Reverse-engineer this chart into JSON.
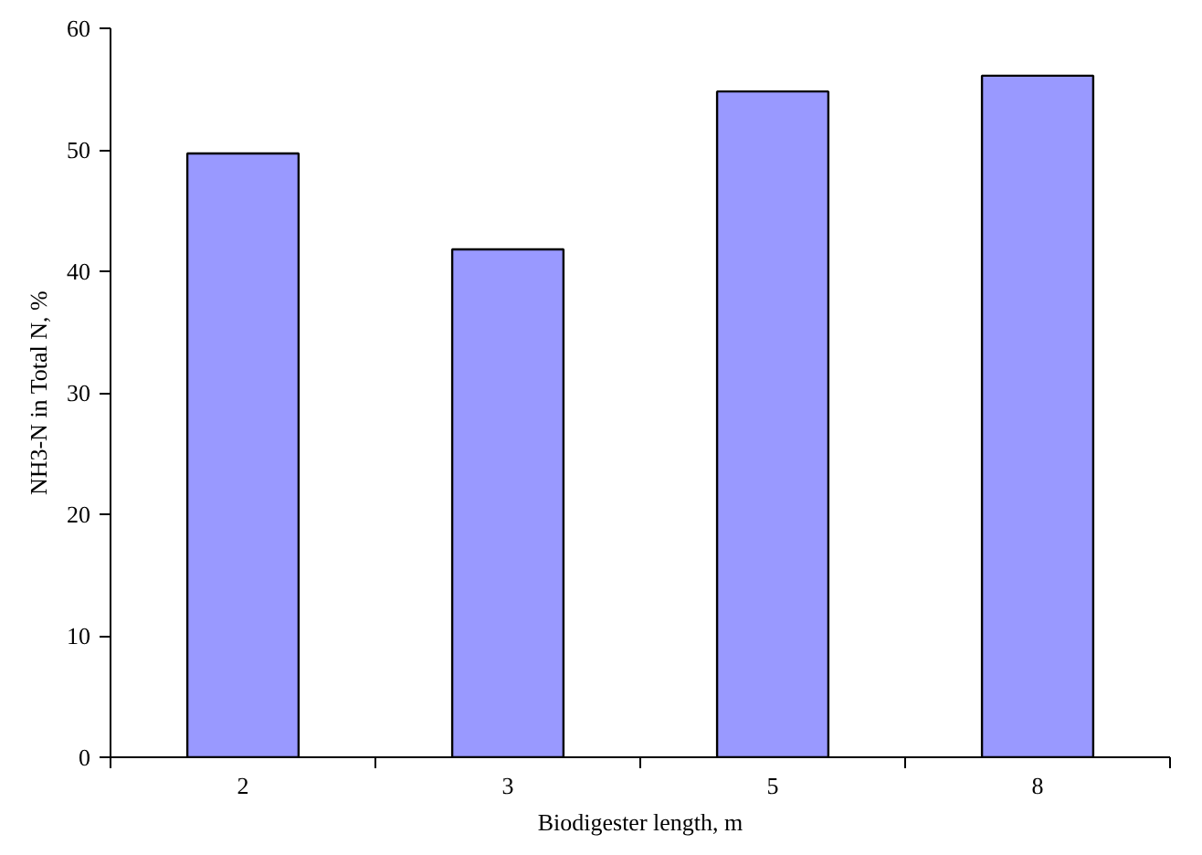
{
  "chart_data": {
    "type": "bar",
    "xlabel": "Biodigester length, m",
    "ylabel": "NH3-N in Total N, %",
    "categories": [
      "2",
      "3",
      "5",
      "8"
    ],
    "values": [
      49.7,
      41.8,
      54.8,
      56.1
    ],
    "color": "#9999ff",
    "ylim": [
      0,
      60
    ],
    "yticks": [
      0,
      10,
      20,
      30,
      40,
      50,
      60
    ],
    "grid": false
  }
}
